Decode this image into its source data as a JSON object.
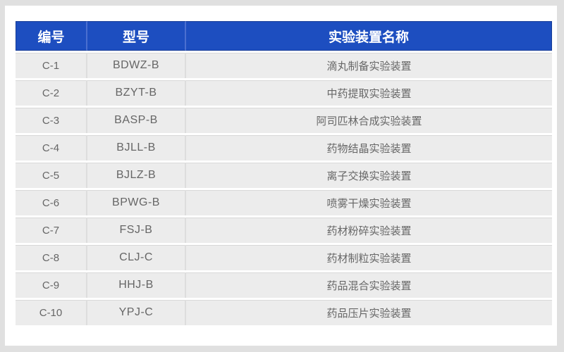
{
  "page": {
    "background_color": "#e0e0e0",
    "card_color": "#ffffff"
  },
  "table": {
    "header_background": "#1d4ec0",
    "header_text_color": "#ffffff",
    "row_background": "#ececec",
    "row_text_color": "#666666",
    "columns": [
      {
        "key": "number",
        "label": "编号"
      },
      {
        "key": "model",
        "label": "型号"
      },
      {
        "key": "device_name",
        "label": "实验装置名称"
      }
    ],
    "rows": [
      {
        "number": "C-1",
        "model": "BDWZ-B",
        "device_name": "滴丸制备实验装置"
      },
      {
        "number": "C-2",
        "model": "BZYT-B",
        "device_name": "中药提取实验装置"
      },
      {
        "number": "C-3",
        "model": "BASP-B",
        "device_name": "阿司匹林合成实验装置"
      },
      {
        "number": "C-4",
        "model": "BJLL-B",
        "device_name": "药物结晶实验装置"
      },
      {
        "number": "C-5",
        "model": "BJLZ-B",
        "device_name": "离子交换实验装置"
      },
      {
        "number": "C-6",
        "model": "BPWG-B",
        "device_name": "喷雾干燥实验装置"
      },
      {
        "number": "C-7",
        "model": "FSJ-B",
        "device_name": "药材粉碎实验装置"
      },
      {
        "number": "C-8",
        "model": "CLJ-C",
        "device_name": "药材制粒实验装置"
      },
      {
        "number": "C-9",
        "model": "HHJ-B",
        "device_name": "药品混合实验装置"
      },
      {
        "number": "C-10",
        "model": "YPJ-C",
        "device_name": "药品压片实验装置"
      }
    ]
  }
}
